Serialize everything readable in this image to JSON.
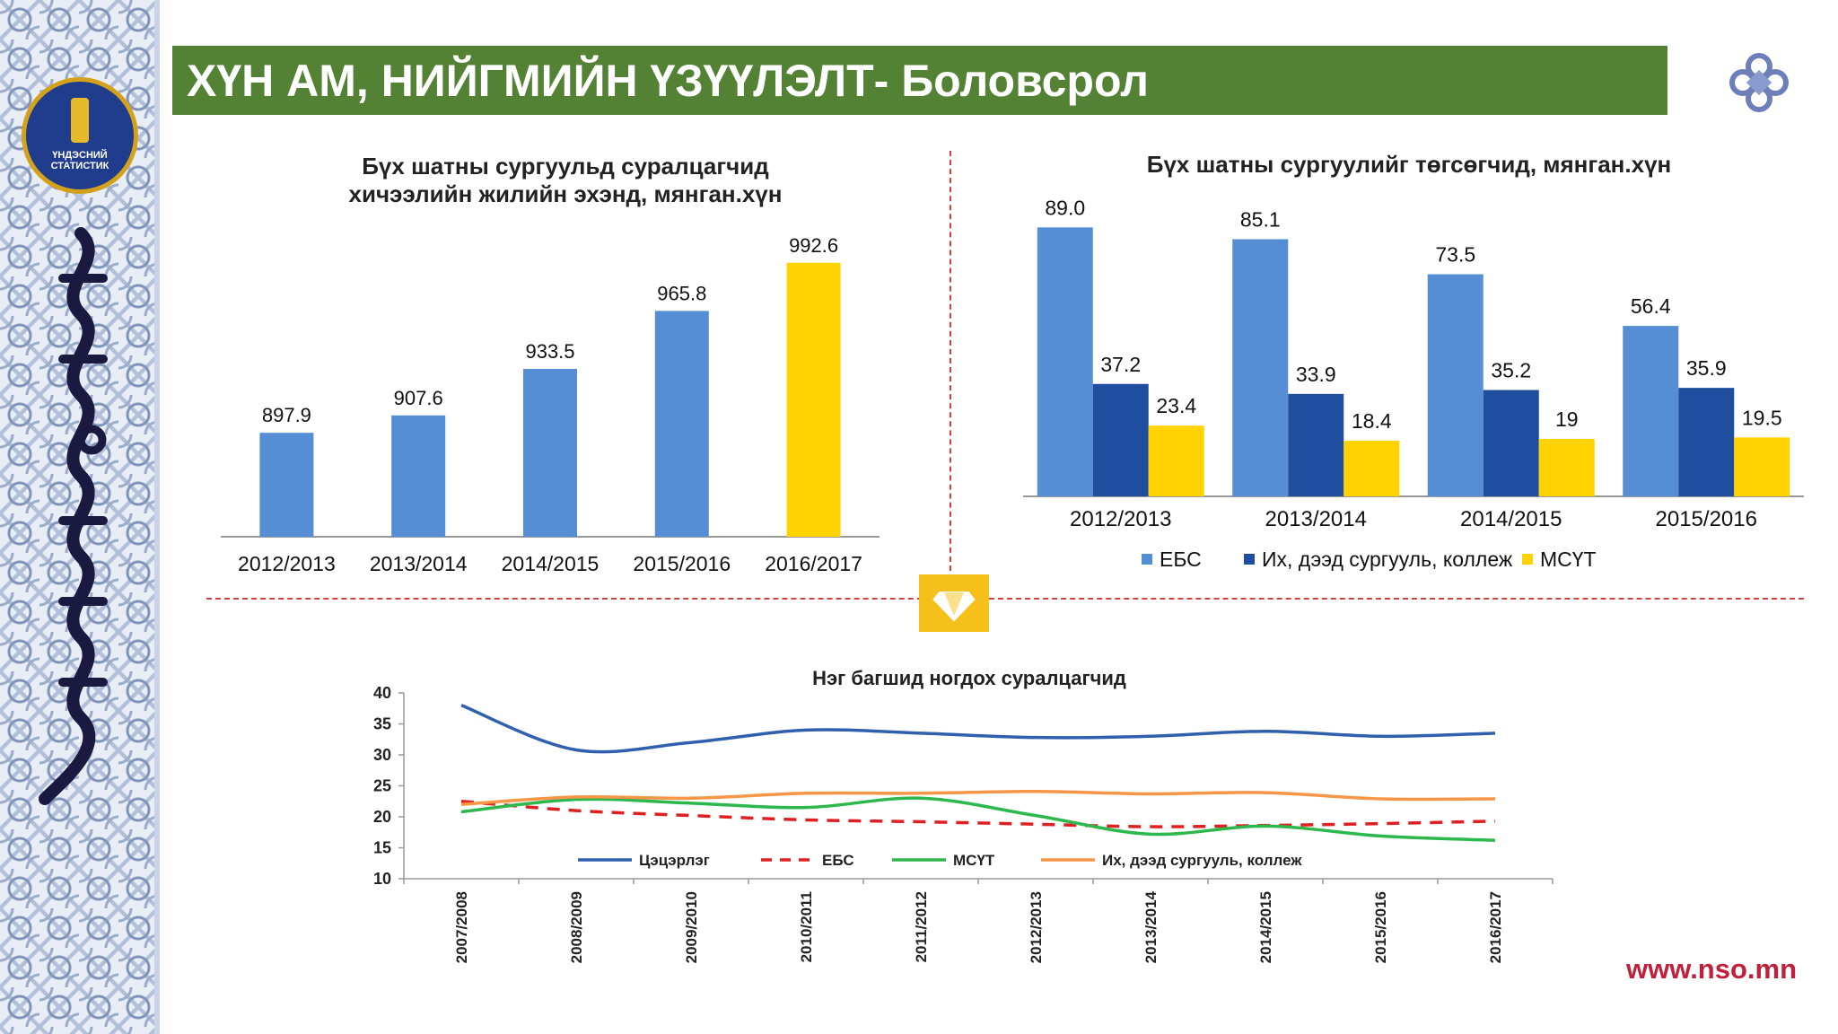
{
  "header": {
    "title": "ХҮН АМ, НИЙГМИЙН ҮЗҮҮЛЭЛТ- Боловсрол"
  },
  "logo": {
    "text": "ҮНДЭСНИЙ\nСТАТИСТИК"
  },
  "footer": {
    "url": "www.nso.mn"
  },
  "colors": {
    "header_green": "#548235",
    "bar_blue": "#558ed5",
    "bar_navy": "#1f4e9f",
    "bar_yellow": "#ffd200",
    "line_orange": "#f79646",
    "line_red": "#e02020",
    "line_green": "#2db84e",
    "line_blue": "#2f5fad"
  },
  "chart_data": [
    {
      "type": "bar",
      "title": "Бүх шатны сургуульд суралцагчид хичээлийн жилийн эхэнд, мянган.хүн",
      "title_lines": [
        "Бүх шатны сургуульд суралцагчид",
        "хичээлийн жилийн эхэнд, мянган.хүн"
      ],
      "categories": [
        "2012/2013",
        "2013/2014",
        "2014/2015",
        "2015/2016",
        "2016/2017"
      ],
      "values": [
        897.9,
        907.6,
        933.5,
        965.8,
        992.6
      ],
      "value_labels": [
        "897.9",
        "907.6",
        "933.5",
        "965.8",
        "992.6"
      ],
      "highlight_index": 4,
      "ylim": [
        840,
        1000
      ],
      "grid": false
    },
    {
      "type": "bar",
      "title": "Бүх шатны сургуулийг төгсөгчид, мянган.хүн",
      "categories": [
        "2012/2013",
        "2013/2014",
        "2014/2015",
        "2015/2016"
      ],
      "series": [
        {
          "name": "ЕБС",
          "values": [
            89.0,
            85.1,
            73.5,
            56.4
          ],
          "labels": [
            "89.0",
            "85.1",
            "73.5",
            "56.4"
          ]
        },
        {
          "name": "Их, дээд сургууль, коллеж",
          "values": [
            37.2,
            33.9,
            35.2,
            35.9
          ],
          "labels": [
            "37.2",
            "33.9",
            "35.2",
            "35.9"
          ]
        },
        {
          "name": "МСҮТ",
          "values": [
            23.4,
            18.4,
            19,
            19.5
          ],
          "labels": [
            "23.4",
            "18.4",
            "19",
            "19.5"
          ]
        }
      ],
      "ylim": [
        0,
        90
      ],
      "legend": "bottom",
      "grid": false
    },
    {
      "type": "line",
      "title": "Нэг багшид ногдох суралцагчид",
      "x": [
        "2007/2008",
        "2008/2009",
        "2009/2010",
        "2010/2011",
        "2011/2012",
        "2012/2013",
        "2013/2014",
        "2014/2015",
        "2015/2016",
        "2016/2017"
      ],
      "yticks": [
        "10",
        "15",
        "20",
        "25",
        "30",
        "35",
        "40"
      ],
      "ylim": [
        10,
        40
      ],
      "series": [
        {
          "name": "Цэцэрлэг",
          "values": [
            38,
            30.8,
            32,
            34,
            33.5,
            32.8,
            33,
            33.8,
            33,
            33.5
          ]
        },
        {
          "name": "ЕБС",
          "values": [
            22.5,
            21,
            20.2,
            19.5,
            19.2,
            18.8,
            18.4,
            18.6,
            18.9,
            19.3
          ]
        },
        {
          "name": "МСҮТ",
          "values": [
            20.8,
            22.8,
            22.2,
            21.5,
            23,
            20.2,
            17.2,
            18.5,
            16.9,
            16.2
          ]
        },
        {
          "name": "Их, дээд сургууль, коллеж",
          "values": [
            22,
            23.2,
            23,
            23.8,
            23.8,
            24.1,
            23.7,
            23.9,
            22.9,
            22.9
          ]
        }
      ],
      "legend": "inside-bottom",
      "grid": false
    }
  ]
}
